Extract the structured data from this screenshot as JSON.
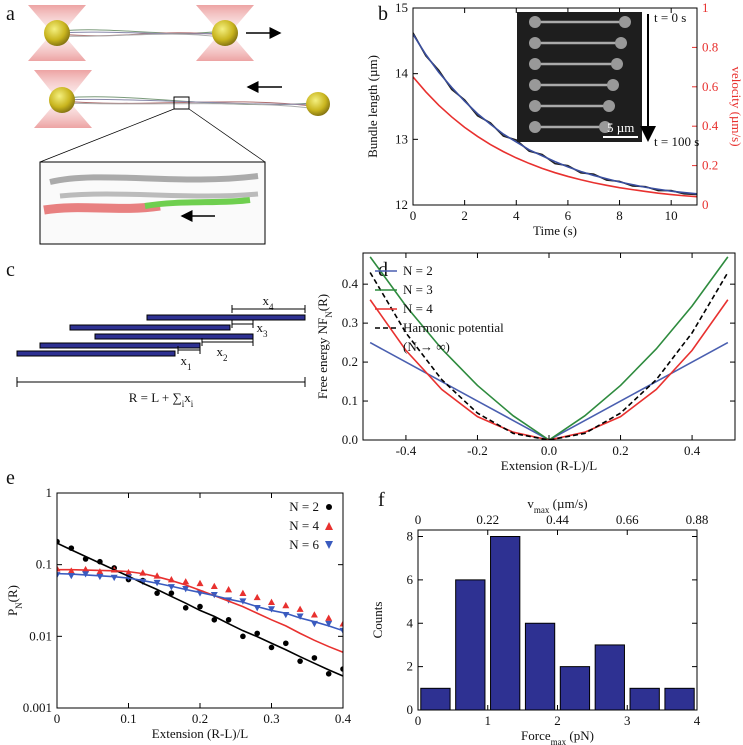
{
  "panel_labels": [
    "a",
    "b",
    "c",
    "d",
    "e",
    "f"
  ],
  "diagram_c": {
    "x_labels": [
      [
        "x",
        "4"
      ],
      [
        "x",
        "3"
      ],
      [
        "x",
        "2"
      ],
      [
        "x",
        "1"
      ]
    ],
    "formula": [
      "R = L + ∑",
      "i",
      "x",
      "i"
    ]
  },
  "chart_data": [
    {
      "type": "line",
      "x": [
        0,
        0.5,
        1,
        1.5,
        2,
        2.5,
        3,
        3.5,
        4,
        4.5,
        5,
        5.5,
        6,
        6.5,
        7,
        7.5,
        8,
        8.5,
        9,
        9.5,
        10,
        10.5,
        11
      ],
      "series": [
        {
          "color": "#222222",
          "values": [
            14.62,
            14.27,
            14.05,
            13.76,
            13.6,
            13.36,
            13.25,
            13.05,
            12.99,
            12.82,
            12.77,
            12.63,
            12.6,
            12.49,
            12.47,
            12.38,
            12.36,
            12.29,
            12.28,
            12.22,
            12.22,
            12.17,
            12.16
          ]
        },
        {
          "color": "#3a4fa0",
          "values": [
            14.6,
            14.29,
            14.02,
            13.79,
            13.58,
            13.39,
            13.23,
            13.08,
            12.96,
            12.84,
            12.75,
            12.66,
            12.58,
            12.51,
            12.45,
            12.4,
            12.35,
            12.31,
            12.27,
            12.24,
            12.21,
            12.19,
            12.17
          ]
        },
        {
          "color": "#e8312f",
          "axis": "y2",
          "values": [
            0.65,
            0.574,
            0.506,
            0.447,
            0.394,
            0.348,
            0.307,
            0.271,
            0.239,
            0.211,
            0.186,
            0.164,
            0.145,
            0.128,
            0.113,
            0.1,
            0.088,
            0.078,
            0.069,
            0.06,
            0.053,
            0.047,
            0.042
          ]
        }
      ],
      "xlim": [
        0,
        11
      ],
      "xticks": [
        0,
        2,
        4,
        6,
        8,
        10
      ],
      "ylim": [
        12,
        15
      ],
      "yticks": [
        12,
        13,
        14,
        15
      ],
      "y2lim": [
        0,
        1
      ],
      "y2ticks": [
        0,
        0.2,
        0.4,
        0.6,
        0.8,
        1
      ],
      "xlabel": "Time (s)",
      "ylabel": "Bundle length (µm)",
      "y2label": "velocity (µm/s)",
      "y2color": "#e8312f",
      "inset_labels": [
        "t = 0 s",
        "t = 100 s",
        "5 µm"
      ]
    },
    {
      "type": "line",
      "x": [
        -0.5,
        -0.4,
        -0.3,
        -0.2,
        -0.1,
        0,
        0.1,
        0.2,
        0.3,
        0.4,
        0.5
      ],
      "series": [
        {
          "name": "N = 2",
          "color": "#4a5fb0",
          "values": [
            0.25,
            0.2,
            0.15,
            0.1,
            0.05,
            0,
            0.05,
            0.1,
            0.15,
            0.2,
            0.25
          ]
        },
        {
          "name": "N = 3",
          "color": "#2e8b3e",
          "values": [
            0.47,
            0.344,
            0.234,
            0.14,
            0.062,
            0,
            0.062,
            0.14,
            0.234,
            0.344,
            0.47
          ]
        },
        {
          "name": "N = 4",
          "color": "#e8312f",
          "values": [
            0.36,
            0.23,
            0.13,
            0.06,
            0.02,
            0,
            0.02,
            0.06,
            0.13,
            0.23,
            0.36
          ]
        },
        {
          "name": "Harmonic potential",
          "color": "#000000",
          "dash": true,
          "values": [
            0.43,
            0.275,
            0.155,
            0.069,
            0.017,
            0,
            0.017,
            0.069,
            0.155,
            0.275,
            0.43
          ]
        }
      ],
      "xlim": [
        -0.52,
        0.52
      ],
      "xticks": [
        -0.4,
        -0.2,
        {
          "value": 0,
          "label": "0.0"
        },
        0.2,
        0.4
      ],
      "ylim": [
        0,
        0.48
      ],
      "yticks": [
        {
          "value": 0,
          "label": "0.0"
        },
        0.1,
        0.2,
        0.3,
        0.4
      ],
      "xlabel": "Extension (R-L)/L",
      "ylabel": [
        "Free energy NF",
        "N",
        "(R)"
      ],
      "legend": "upper left",
      "annotation": "(N → ∞)"
    },
    {
      "type": "scatter",
      "yscale": "log",
      "x": [
        0,
        0.02,
        0.04,
        0.06,
        0.08,
        0.1,
        0.12,
        0.14,
        0.16,
        0.18,
        0.2,
        0.22,
        0.24,
        0.26,
        0.28,
        0.3,
        0.32,
        0.34,
        0.36,
        0.38,
        0.4
      ],
      "series": [
        {
          "name": "N = 2",
          "color": "#000000",
          "marker": "circle",
          "values": [
            0.21,
            0.17,
            0.12,
            0.11,
            0.09,
            0.062,
            0.06,
            0.04,
            0.04,
            0.025,
            0.026,
            0.017,
            0.017,
            0.01,
            0.011,
            0.007,
            0.008,
            0.0045,
            0.005,
            0.003,
            0.0035
          ]
        },
        {
          "name": "N = 4",
          "color": "#e8312f",
          "marker": "triangle",
          "values": [
            0.088,
            0.082,
            0.086,
            0.08,
            0.085,
            0.078,
            0.077,
            0.07,
            0.062,
            0.058,
            0.055,
            0.05,
            0.045,
            0.04,
            0.035,
            0.03,
            0.027,
            0.024,
            0.02,
            0.018,
            0.015
          ]
        },
        {
          "name": "N = 6",
          "color": "#3a5bbf",
          "marker": "triangle-down",
          "values": [
            0.072,
            0.07,
            0.074,
            0.068,
            0.066,
            0.067,
            0.058,
            0.056,
            0.049,
            0.046,
            0.04,
            0.038,
            0.032,
            0.031,
            0.025,
            0.024,
            0.02,
            0.019,
            0.015,
            0.015,
            0.012
          ]
        },
        {
          "color": "#000000",
          "style": "line",
          "values": [
            0.2,
            0.161,
            0.13,
            0.105,
            0.085,
            0.069,
            0.055,
            0.045,
            0.036,
            0.029,
            0.023,
            0.019,
            0.015,
            0.012,
            0.0099,
            0.008,
            0.0065,
            0.0052,
            0.0042,
            0.0034,
            0.0028
          ]
        },
        {
          "color": "#e8312f",
          "style": "line",
          "values": [
            0.085,
            0.085,
            0.084,
            0.083,
            0.082,
            0.08,
            0.075,
            0.068,
            0.06,
            0.052,
            0.044,
            0.037,
            0.031,
            0.026,
            0.021,
            0.017,
            0.014,
            0.011,
            0.0088,
            0.0072,
            0.006
          ]
        },
        {
          "color": "#3a5bbf",
          "style": "line",
          "values": [
            0.075,
            0.074,
            0.072,
            0.07,
            0.068,
            0.065,
            0.06,
            0.055,
            0.05,
            0.045,
            0.041,
            0.037,
            0.033,
            0.03,
            0.026,
            0.023,
            0.021,
            0.018,
            0.016,
            0.014,
            0.012
          ]
        }
      ],
      "xlim": [
        0,
        0.4
      ],
      "xticks": [
        0,
        0.1,
        0.2,
        0.3,
        0.4
      ],
      "ylim": [
        0.001,
        1
      ],
      "yticks": [
        0.001,
        0.01,
        0.1,
        1
      ],
      "xlabel": "Extension (R-L)/L",
      "ylabel": [
        "P",
        "N",
        "(R)"
      ],
      "legend": "upper right"
    },
    {
      "type": "histogram",
      "color": "#2e3192",
      "bins": [
        0,
        0.5,
        1,
        1.5,
        2,
        2.5,
        3,
        3.5,
        4
      ],
      "values": [
        1,
        6,
        8,
        4,
        2,
        3,
        1,
        1
      ],
      "xlim": [
        0,
        4
      ],
      "xticks": [
        0,
        1,
        2,
        3,
        4
      ],
      "x2lim": [
        0,
        0.88
      ],
      "x2ticks": [
        0,
        0.22,
        0.44,
        0.66,
        0.88
      ],
      "ylim": [
        0,
        8.3
      ],
      "yticks": [
        0,
        2,
        4,
        6,
        8
      ],
      "xlabel": [
        "Force",
        "max",
        " (pN)"
      ],
      "x2label": [
        "v",
        "max",
        " (µm/s)"
      ],
      "ylabel": "Counts"
    }
  ]
}
